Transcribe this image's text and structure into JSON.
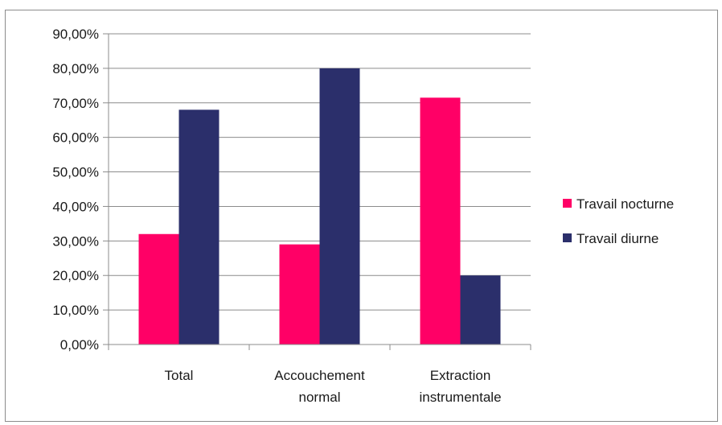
{
  "chart_data": {
    "type": "bar",
    "title": "",
    "xlabel": "",
    "ylabel": "",
    "categories": [
      [
        "Total"
      ],
      [
        "Accouchement",
        "normal"
      ],
      [
        "Extraction",
        "instrumentale"
      ]
    ],
    "series": [
      {
        "name": "Travail nocturne",
        "color": "#ff0066",
        "values": [
          0.32,
          0.29,
          0.715
        ]
      },
      {
        "name": "Travail diurne",
        "color": "#2b2f6b",
        "values": [
          0.68,
          0.8,
          0.2
        ]
      }
    ],
    "ylim": [
      0,
      0.9
    ],
    "yticks": [
      0,
      0.1,
      0.2,
      0.3,
      0.4,
      0.5,
      0.6,
      0.7,
      0.8,
      0.9
    ],
    "ytick_labels": [
      "0,00%",
      "10,00%",
      "20,00%",
      "30,00%",
      "40,00%",
      "50,00%",
      "60,00%",
      "70,00%",
      "80,00%",
      "90,00%"
    ],
    "grid": true,
    "legend_position": "right"
  }
}
